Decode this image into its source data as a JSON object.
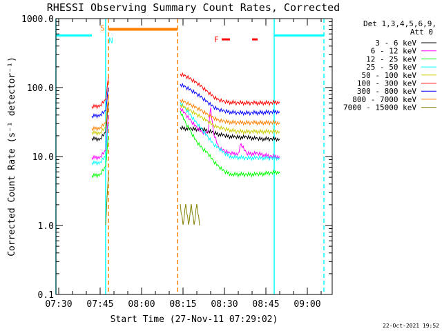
{
  "chart_data": {
    "type": "line",
    "title": "RHESSI Observing Summary Count Rates, Corrected",
    "xlabel": "Start Time (27-Nov-11 07:29:02)",
    "ylabel": "Corrected Count Rate (s⁻¹ detector⁻¹)",
    "y_scale": "log",
    "ylim": [
      0.1,
      1000
    ],
    "xlim": [
      "07:29",
      "09:09"
    ],
    "x_ticks": [
      "07:30",
      "07:45",
      "08:00",
      "08:15",
      "08:30",
      "08:45",
      "09:00"
    ],
    "y_ticks": [
      "0.1",
      "1.0",
      "10.0",
      "100.0",
      "1000.0"
    ],
    "legend_header": [
      "Det 1,3,4,5,6,9,",
      "Att 0"
    ],
    "legend_position": "right",
    "footer": "22-Oct-2021 19:52",
    "markers": {
      "saa_label": "S",
      "night_label": "N",
      "flare_label": "F",
      "night_bars": [
        [
          "07:29",
          "07:42"
        ],
        [
          "08:48",
          "09:06"
        ]
      ],
      "saa_bar": [
        "07:48",
        "08:13"
      ],
      "flare_marks": [
        [
          "08:29",
          "08:32"
        ],
        [
          "08:40",
          "08:42"
        ]
      ],
      "cyan_solid_lines": [
        "07:29",
        "07:47",
        "08:48"
      ],
      "cyan_dashed_lines": [
        "09:06"
      ],
      "orange_dashed_lines": [
        "07:48",
        "08:13"
      ]
    },
    "series": [
      {
        "name": "3 - 6 keV",
        "color": "#000000",
        "segments": [
          {
            "x": [
              "07:42",
              "07:45",
              "07:47",
              "07:48"
            ],
            "y": [
              18,
              18,
              22,
              60
            ]
          },
          {
            "x": [
              "08:14",
              "08:18",
              "08:22",
              "08:26",
              "08:30",
              "08:34",
              "08:38",
              "08:42",
              "08:47",
              "08:50"
            ],
            "y": [
              26,
              25,
              25,
              22,
              20,
              19,
              19,
              18,
              18,
              18
            ]
          }
        ]
      },
      {
        "name": "6 - 12 keV",
        "color": "#ff00ff",
        "segments": [
          {
            "x": [
              "07:42",
              "07:45",
              "07:47",
              "07:48"
            ],
            "y": [
              9.5,
              9.8,
              12,
              40
            ]
          },
          {
            "x": [
              "08:14",
              "08:16",
              "08:18",
              "08:20",
              "08:22",
              "08:24",
              "08:25",
              "08:26",
              "08:28",
              "08:30",
              "08:32",
              "08:35",
              "08:36",
              "08:38",
              "08:42",
              "08:47",
              "08:50"
            ],
            "y": [
              50,
              40,
              32,
              26,
              22,
              22,
              50,
              22,
              13,
              12,
              11,
              11,
              15,
              11,
              11,
              10,
              10
            ]
          }
        ]
      },
      {
        "name": "12 - 25 keV",
        "color": "#00ff00",
        "segments": [
          {
            "x": [
              "07:42",
              "07:45",
              "07:47",
              "07:48"
            ],
            "y": [
              5.2,
              5.5,
              7,
              20
            ]
          },
          {
            "x": [
              "08:14",
              "08:16",
              "08:18",
              "08:20",
              "08:22",
              "08:24",
              "08:26",
              "08:28",
              "08:30",
              "08:33",
              "08:38",
              "08:42",
              "08:47",
              "08:50"
            ],
            "y": [
              45,
              30,
              22,
              16,
              13,
              11,
              8.5,
              7,
              6,
              5.5,
              5.5,
              5.5,
              5.8,
              6
            ]
          }
        ]
      },
      {
        "name": "25 - 50 keV",
        "color": "#00ffff",
        "segments": [
          {
            "x": [
              "07:42",
              "07:45",
              "07:47",
              "07:48"
            ],
            "y": [
              8,
              8.2,
              10,
              30
            ]
          },
          {
            "x": [
              "08:14",
              "08:16",
              "08:18",
              "08:20",
              "08:22",
              "08:24",
              "08:26",
              "08:28",
              "08:30",
              "08:33",
              "08:38",
              "08:42",
              "08:47",
              "08:50"
            ],
            "y": [
              60,
              48,
              38,
              30,
              24,
              19,
              15,
              13,
              11,
              9.8,
              9.5,
              9.5,
              9.5,
              9.5
            ]
          }
        ]
      },
      {
        "name": "50 - 100 keV",
        "color": "#cccc00",
        "segments": [
          {
            "x": [
              "07:42",
              "07:45",
              "07:47",
              "07:48"
            ],
            "y": [
              22,
              22,
              26,
              70
            ]
          },
          {
            "x": [
              "08:14",
              "08:16",
              "08:18",
              "08:20",
              "08:22",
              "08:24",
              "08:26",
              "08:28",
              "08:30",
              "08:35",
              "08:40",
              "08:47",
              "08:50"
            ],
            "y": [
              55,
              50,
              45,
              40,
              36,
              32,
              28,
              26,
              25,
              23,
              23,
              23,
              23
            ]
          }
        ]
      },
      {
        "name": "100 - 300 keV",
        "color": "#ff0000",
        "segments": [
          {
            "x": [
              "07:42",
              "07:45",
              "07:47",
              "07:48"
            ],
            "y": [
              52,
              55,
              65,
              140
            ]
          },
          {
            "x": [
              "08:14",
              "08:16",
              "08:18",
              "08:20",
              "08:22",
              "08:24",
              "08:26",
              "08:28",
              "08:30",
              "08:35",
              "08:40",
              "08:47",
              "08:50"
            ],
            "y": [
              155,
              145,
              130,
              115,
              100,
              85,
              73,
              65,
              62,
              60,
              60,
              60,
              62
            ]
          }
        ]
      },
      {
        "name": "300 - 800 keV",
        "color": "#0000ff",
        "segments": [
          {
            "x": [
              "07:42",
              "07:45",
              "07:47",
              "07:48"
            ],
            "y": [
              38,
              40,
              45,
              100
            ]
          },
          {
            "x": [
              "08:14",
              "08:16",
              "08:18",
              "08:20",
              "08:22",
              "08:24",
              "08:26",
              "08:28",
              "08:30",
              "08:35",
              "08:40",
              "08:47",
              "08:50"
            ],
            "y": [
              110,
              100,
              90,
              80,
              70,
              60,
              52,
              47,
              45,
              43,
              43,
              44,
              45
            ]
          }
        ]
      },
      {
        "name": "800 - 7000 keV",
        "color": "#ff8000",
        "segments": [
          {
            "x": [
              "07:42",
              "07:45",
              "07:47",
              "07:48"
            ],
            "y": [
              25,
              26,
              30,
              70
            ]
          },
          {
            "x": [
              "08:14",
              "08:16",
              "08:18",
              "08:20",
              "08:22",
              "08:24",
              "08:26",
              "08:28",
              "08:30",
              "08:35",
              "08:40",
              "08:47",
              "08:50"
            ],
            "y": [
              65,
              60,
              55,
              50,
              45,
              40,
              36,
              33,
              32,
              31,
              31,
              31,
              31
            ]
          }
        ]
      },
      {
        "name": "7000 - 15000 keV",
        "color": "#808000",
        "segments": [
          {
            "x": [
              "07:47",
              "07:47.5",
              "07:48"
            ],
            "y": [
              1.0,
              2.5,
              6
            ]
          },
          {
            "x": [
              "08:14",
              "08:15",
              "08:16",
              "08:17",
              "08:18",
              "08:19",
              "08:20",
              "08:21"
            ],
            "y": [
              2.0,
              1.0,
              2.0,
              1.0,
              2.0,
              1.0,
              2.0,
              1.0
            ]
          }
        ]
      }
    ]
  }
}
